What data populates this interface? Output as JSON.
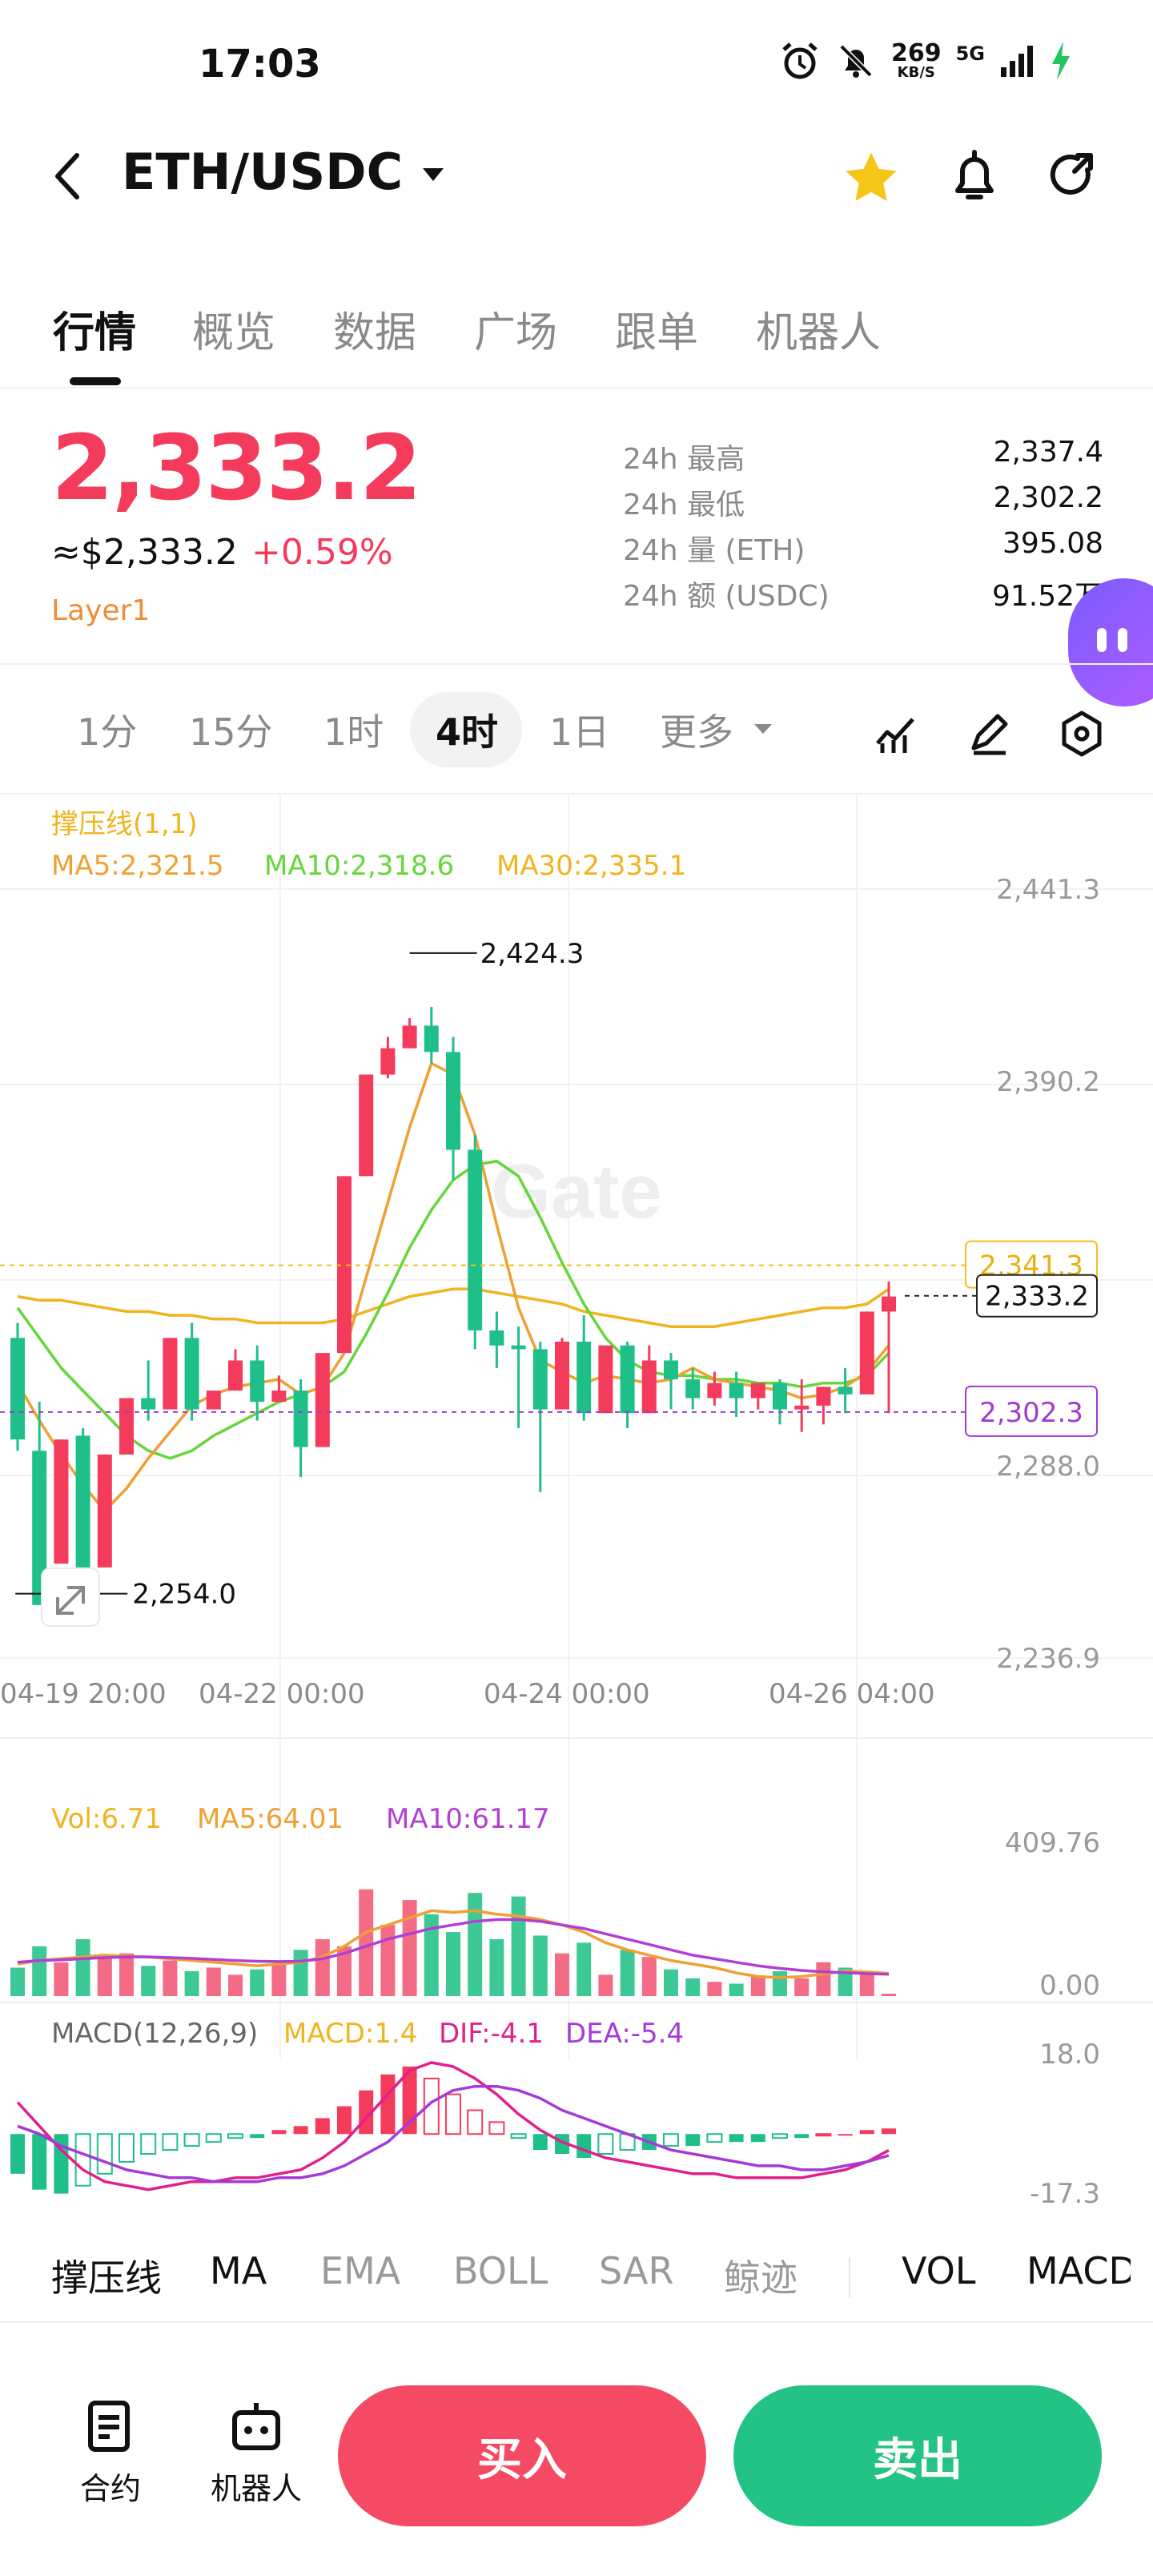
{
  "status_bar": {
    "time": "17:03",
    "network_speed": "269",
    "network_unit": "KB/S",
    "network_type": "5G"
  },
  "header": {
    "pair": "ETH/USDC"
  },
  "tabs": [
    "行情",
    "概览",
    "数据",
    "广场",
    "跟单",
    "机器人"
  ],
  "ticker": {
    "last_price": "2,333.2",
    "usd_price": "≈$2,333.2",
    "change": "+0.59%",
    "tag": "Layer1",
    "stats": [
      {
        "label": "24h  最高",
        "value": "2,337.4"
      },
      {
        "label": "24h  最低",
        "value": "2,302.2"
      },
      {
        "label": "24h  量 (ETH)",
        "value": "395.08"
      },
      {
        "label": "24h  额 (USDC)",
        "value": "91.52万"
      }
    ]
  },
  "intervals": [
    "1分",
    "15分",
    "1时",
    "4时",
    "1日",
    "更多"
  ],
  "chart": {
    "indicator_title": "撑压线(1,1)",
    "ma_legend": {
      "ma5": "MA5:2,321.5",
      "ma10": "MA10:2,318.6",
      "ma30": "MA30:2,335.1"
    },
    "y_ticks": [
      "2,441.3",
      "2,390.2",
      "2,288.0",
      "2,236.9"
    ],
    "x_ticks": [
      "04-19 20:00",
      "04-22 00:00",
      "04-24 00:00",
      "04-26 04:00"
    ],
    "high_label": "2,424.3",
    "low_label": "2,254.0",
    "resistance": "2,341.3",
    "current": "2,333.2",
    "support": "2,302.3",
    "watermark": "Gate",
    "vol_legend": {
      "vol": "Vol:6.71",
      "ma5": "MA5:64.01",
      "ma10": "MA10:61.17"
    },
    "vol_ticks": [
      "409.76",
      "0.00"
    ],
    "macd_legend": {
      "title": "MACD(12,26,9)",
      "macd": "MACD:1.4",
      "dif": "DIF:-4.1",
      "dea": "DEA:-5.4"
    },
    "macd_ticks": [
      "18.0",
      "-17.3"
    ]
  },
  "chart_data": {
    "type": "candlestick",
    "ylim": [
      2236.9,
      2441.3
    ],
    "candles": [
      [
        2322,
        2326,
        2295,
        2292
      ],
      [
        2292,
        2305,
        2251,
        2262
      ],
      [
        2262,
        2262,
        2295,
        2296
      ],
      [
        2296,
        2298,
        2261,
        2255
      ],
      [
        2261,
        2262,
        2291,
        2294
      ],
      [
        2291,
        2293,
        2306,
        2313
      ],
      [
        2306,
        2316,
        2303,
        2300
      ],
      [
        2303,
        2306,
        2322,
        2327
      ],
      [
        2322,
        2326,
        2303,
        2300
      ],
      [
        2303,
        2306,
        2308,
        2312
      ],
      [
        2308,
        2319,
        2316,
        2312
      ],
      [
        2316,
        2320,
        2305,
        2300
      ],
      [
        2305,
        2312,
        2308,
        2306
      ],
      [
        2308,
        2311,
        2293,
        2285
      ],
      [
        2293,
        2297,
        2318,
        2322
      ],
      [
        2318,
        2321,
        2365,
        2370
      ],
      [
        2365,
        2372,
        2392,
        2405
      ],
      [
        2392,
        2402,
        2399,
        2391
      ],
      [
        2399,
        2407,
        2405,
        2424
      ],
      [
        2405,
        2410,
        2398,
        2395
      ],
      [
        2398,
        2402,
        2372,
        2364
      ],
      [
        2372,
        2376,
        2324,
        2319
      ],
      [
        2324,
        2329,
        2320,
        2314
      ],
      [
        2320,
        2325,
        2319,
        2298
      ],
      [
        2319,
        2321,
        2303,
        2281
      ],
      [
        2303,
        2322,
        2321,
        2319
      ],
      [
        2321,
        2328,
        2302,
        2300
      ],
      [
        2302,
        2306,
        2320,
        2322
      ],
      [
        2320,
        2321,
        2302,
        2298
      ],
      [
        2302,
        2320,
        2316,
        2313
      ],
      [
        2316,
        2318,
        2311,
        2303
      ],
      [
        2311,
        2314,
        2306,
        2303
      ],
      [
        2306,
        2313,
        2310,
        2304
      ],
      [
        2310,
        2313,
        2306,
        2301
      ],
      [
        2306,
        2310,
        2310,
        2303
      ],
      [
        2310,
        2311,
        2303,
        2299
      ],
      [
        2303,
        2311,
        2304,
        2297
      ],
      [
        2304,
        2309,
        2309,
        2299
      ],
      [
        2309,
        2314,
        2307,
        2302
      ],
      [
        2307,
        2307,
        2329,
        2333
      ],
      [
        2329,
        2337,
        2333,
        2302
      ]
    ],
    "ma5": [
      2310,
      2300,
      2291,
      2283,
      2276,
      2282,
      2290,
      2297,
      2304,
      2307,
      2309,
      2310,
      2311,
      2307,
      2309,
      2318,
      2338,
      2358,
      2378,
      2395,
      2392,
      2376,
      2352,
      2330,
      2316,
      2313,
      2310,
      2312,
      2311,
      2310,
      2311,
      2314,
      2311,
      2310,
      2309,
      2308,
      2306,
      2307,
      2309,
      2313,
      2320
    ],
    "ma10": [
      2330,
      2322,
      2314,
      2308,
      2302,
      2296,
      2292,
      2290,
      2292,
      2296,
      2299,
      2302,
      2305,
      2307,
      2309,
      2313,
      2323,
      2334,
      2346,
      2356,
      2364,
      2368,
      2369,
      2365,
      2354,
      2342,
      2331,
      2322,
      2316,
      2313,
      2312,
      2312,
      2311,
      2311,
      2310,
      2310,
      2309,
      2310,
      2310,
      2312,
      2318
    ],
    "ma30": [
      2333,
      2332,
      2332,
      2331,
      2330,
      2329,
      2329,
      2328,
      2328,
      2327,
      2327,
      2326,
      2326,
      2326,
      2326,
      2327,
      2329,
      2331,
      2333,
      2334,
      2335,
      2335,
      2334,
      2333,
      2332,
      2331,
      2329,
      2328,
      2327,
      2326,
      2325,
      2325,
      2325,
      2326,
      2327,
      2328,
      2329,
      2330,
      2330,
      2331,
      2335
    ],
    "volume": [
      80,
      140,
      95,
      160,
      110,
      120,
      85,
      100,
      70,
      80,
      60,
      75,
      90,
      130,
      160,
      140,
      300,
      200,
      270,
      230,
      180,
      290,
      160,
      280,
      170,
      120,
      150,
      60,
      130,
      110,
      75,
      50,
      40,
      35,
      55,
      70,
      50,
      95,
      80,
      70,
      6.71
    ],
    "vol_ma5": [
      90,
      100,
      105,
      110,
      115,
      112,
      110,
      105,
      100,
      95,
      90,
      85,
      90,
      95,
      110,
      140,
      180,
      200,
      220,
      240,
      235,
      240,
      230,
      225,
      215,
      200,
      180,
      150,
      130,
      115,
      100,
      90,
      80,
      65,
      55,
      52,
      55,
      62,
      70,
      68,
      64.01
    ],
    "vol_ma10": [
      95,
      100,
      102,
      105,
      108,
      110,
      110,
      108,
      106,
      103,
      100,
      98,
      97,
      98,
      105,
      120,
      140,
      160,
      175,
      190,
      200,
      210,
      215,
      215,
      210,
      200,
      190,
      175,
      160,
      145,
      130,
      115,
      105,
      95,
      85,
      78,
      72,
      68,
      66,
      63,
      61.17
    ],
    "macd_hist": [
      -10,
      -14,
      -15,
      -13,
      -10,
      -7,
      -5,
      -4,
      -3,
      -2,
      -1,
      -1,
      1,
      2,
      4,
      7,
      11,
      15,
      17,
      14,
      10,
      6,
      3,
      -1,
      -4,
      -5,
      -6,
      -5,
      -4,
      -4,
      -3,
      -3,
      -2,
      -2,
      -2,
      -1,
      -1,
      0,
      0,
      1,
      1.4
    ],
    "macd_dif": [
      8,
      2,
      -4,
      -9,
      -12,
      -13,
      -14,
      -13,
      -12,
      -12,
      -11,
      -11,
      -10,
      -9,
      -6,
      -2,
      4,
      10,
      16,
      18,
      17,
      14,
      10,
      5,
      1,
      -2,
      -4,
      -6,
      -7,
      -8,
      -9,
      -10,
      -10,
      -11,
      -11,
      -11,
      -11,
      -10,
      -9,
      -7,
      -4.1
    ],
    "macd_dea": [
      2,
      0,
      -3,
      -5,
      -7,
      -9,
      -10,
      -11,
      -11,
      -12,
      -12,
      -12,
      -11,
      -11,
      -10,
      -8,
      -5,
      -2,
      3,
      8,
      11,
      12,
      12,
      11,
      9,
      6,
      4,
      2,
      0,
      -2,
      -4,
      -5,
      -6,
      -7,
      -8,
      -8,
      -9,
      -9,
      -8,
      -7,
      -5.4
    ],
    "colors": {
      "up": "#f43b5c",
      "down": "#1fbf8a",
      "ma5": "#f0a032",
      "ma10": "#66d63a",
      "ma30": "#f0b41e",
      "vol_ma10": "#b23fd2",
      "dif": "#e0208c",
      "dea": "#a53ad8"
    }
  },
  "indicator_tabs": [
    "撑压线",
    "MA",
    "EMA",
    "BOLL",
    "SAR",
    "鲸迹",
    "VOL",
    "MACD"
  ],
  "bottom_bar": {
    "contract": "合约",
    "bot": "机器人",
    "buy": "买入",
    "sell": "卖出"
  },
  "colors": {
    "up": "#f43b5c",
    "down": "#1fbf8a",
    "buy": "#f54a64",
    "sell": "#22c384",
    "accent_orange": "#f08c3a",
    "star": "#f5c518"
  }
}
